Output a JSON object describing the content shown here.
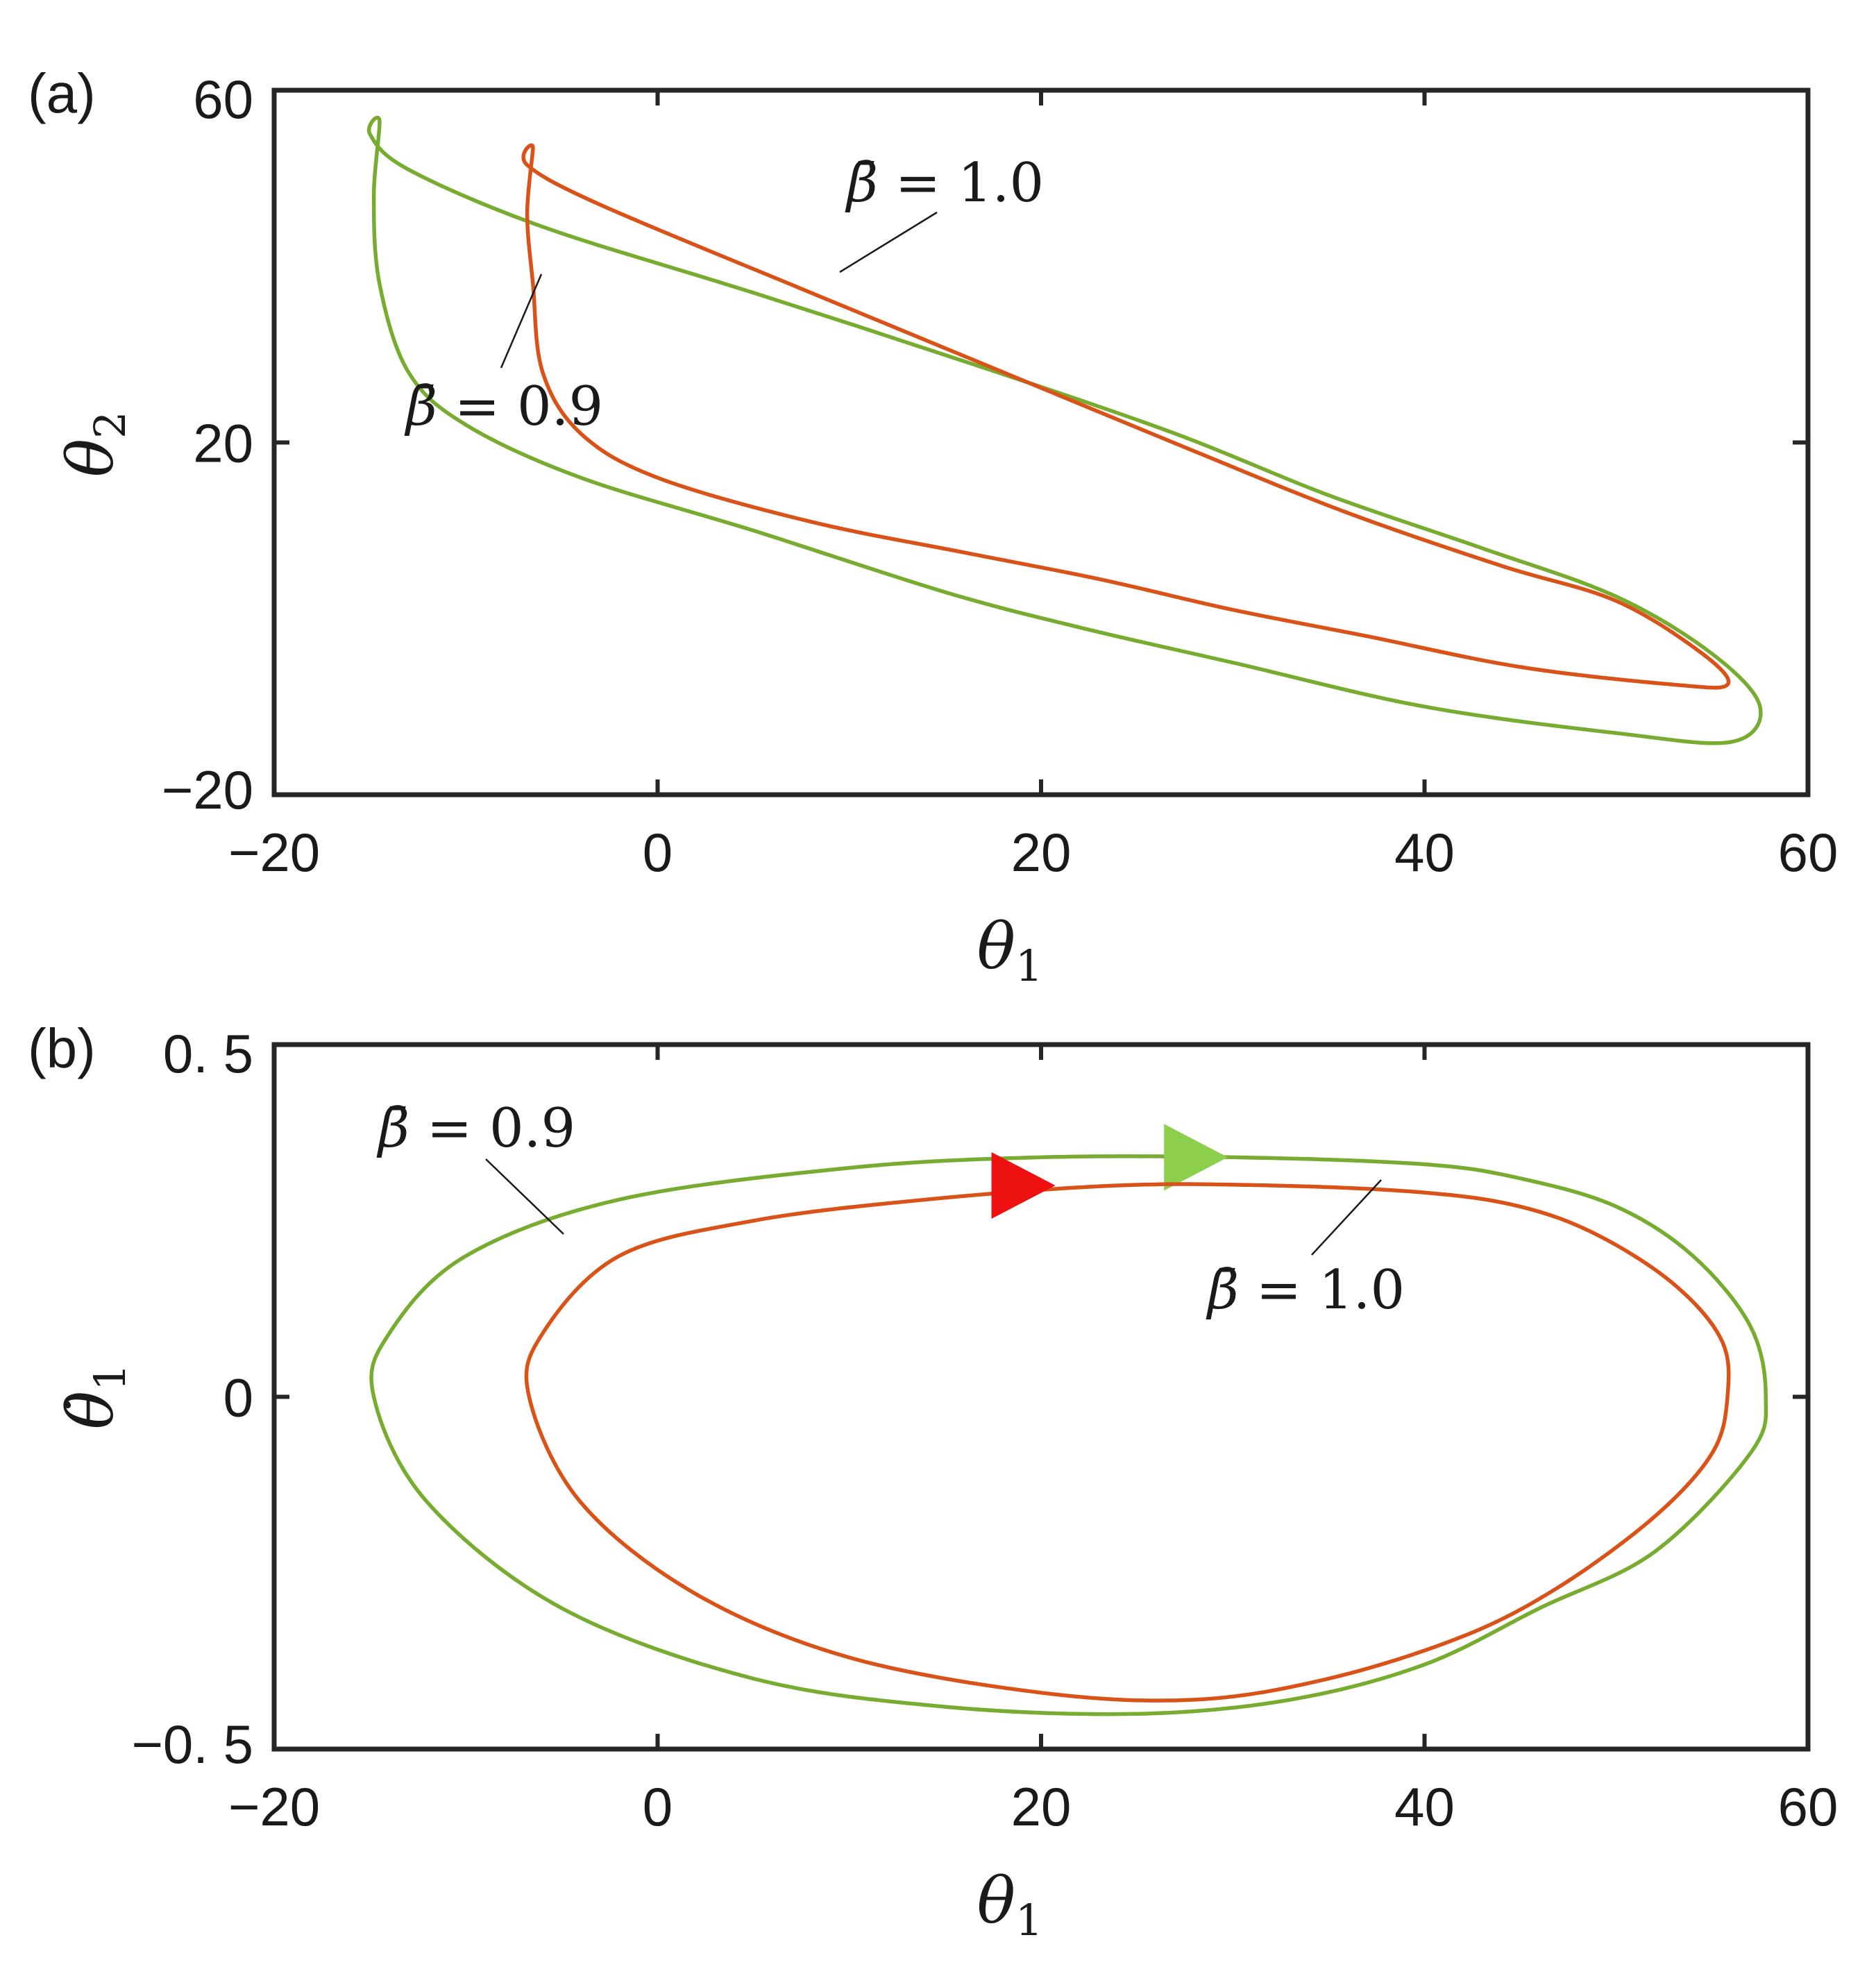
{
  "chart_data": [
    {
      "panel_label": "(a)",
      "type": "line",
      "xlabel": "θ",
      "xlabel_sub": "1",
      "ylabel": "θ",
      "ylabel_sub": "2",
      "xlim": [
        -20,
        60
      ],
      "ylim": [
        -20,
        60
      ],
      "xticks": [
        -20,
        0,
        20,
        40,
        60
      ],
      "yticks": [
        -20,
        20,
        60
      ],
      "xtick_labels": [
        "−20",
        "0",
        "20",
        "40",
        "60"
      ],
      "ytick_labels": [
        "−20",
        "20",
        "60"
      ],
      "grid": false,
      "series": [
        {
          "name": "β̄ = 0.9",
          "color": "#77ac30",
          "points": [
            [
              -14.5,
              56.5
            ],
            [
              -15,
              55
            ],
            [
              -13,
              51
            ],
            [
              -6,
              44.5
            ],
            [
              5,
              37
            ],
            [
              17,
              28.5
            ],
            [
              27,
              21
            ],
            [
              35,
              14
            ],
            [
              43,
              8
            ],
            [
              50,
              2.5
            ],
            [
              55,
              -4
            ],
            [
              57.5,
              -10
            ],
            [
              56,
              -14
            ],
            [
              50,
              -13
            ],
            [
              40,
              -10
            ],
            [
              30,
              -5
            ],
            [
              22,
              -1
            ],
            [
              15,
              3
            ],
            [
              5,
              10
            ],
            [
              -4,
              16
            ],
            [
              -10,
              22
            ],
            [
              -13,
              28
            ],
            [
              -14.5,
              38
            ],
            [
              -14.8,
              48
            ],
            [
              -14.5,
              56.5
            ]
          ]
        },
        {
          "name": "β̄ = 1.0",
          "color": "#d95319",
          "points": [
            [
              -6.5,
              53.5
            ],
            [
              -6.8,
              51.5
            ],
            [
              -3,
              47
            ],
            [
              8,
              37
            ],
            [
              18,
              28
            ],
            [
              28,
              19
            ],
            [
              36,
              12
            ],
            [
              44,
              6
            ],
            [
              50,
              2
            ],
            [
              54.5,
              -4
            ],
            [
              55.8,
              -7.5
            ],
            [
              53,
              -7.5
            ],
            [
              45,
              -5.5
            ],
            [
              37,
              -2
            ],
            [
              30,
              1
            ],
            [
              23,
              4.5
            ],
            [
              16,
              7.5
            ],
            [
              8,
              11
            ],
            [
              0,
              16
            ],
            [
              -4,
              21
            ],
            [
              -6,
              28
            ],
            [
              -6.5,
              38
            ],
            [
              -6.8,
              46
            ],
            [
              -6.5,
              53.5
            ]
          ]
        }
      ],
      "annotations": [
        {
          "text_sym": "β̄",
          "text_rest": "= 1.0"
        },
        {
          "text_sym": "β̄",
          "text_rest": "= 0.9"
        }
      ]
    },
    {
      "panel_label": "(b)",
      "type": "line",
      "xlabel": "θ",
      "xlabel_sub": "1",
      "ylabel": "θ̇",
      "ylabel_sub": "1",
      "xlim": [
        -20,
        60
      ],
      "ylim": [
        -0.5,
        0.5
      ],
      "xticks": [
        -20,
        0,
        20,
        40,
        60
      ],
      "yticks": [
        -0.5,
        0,
        0.5
      ],
      "xtick_labels": [
        "−20",
        "0",
        "20",
        "40",
        "60"
      ],
      "ytick_labels": [
        "−0. 5",
        "0",
        "0. 5"
      ],
      "grid": false,
      "series": [
        {
          "name": "β̄ = 0.9",
          "color": "#77ac30",
          "direction_marker_color": "#8ccf4d",
          "points": [
            [
              -14.8,
              0
            ],
            [
              -14,
              0.09
            ],
            [
              -10,
              0.2
            ],
            [
              -2,
              0.28
            ],
            [
              10,
              0.325
            ],
            [
              20,
              0.34
            ],
            [
              30,
              0.34
            ],
            [
              40,
              0.33
            ],
            [
              45,
              0.31
            ],
            [
              50,
              0.27
            ],
            [
              54,
              0.2
            ],
            [
              57,
              0.1
            ],
            [
              57.8,
              0
            ],
            [
              57,
              -0.08
            ],
            [
              52,
              -0.22
            ],
            [
              46,
              -0.3
            ],
            [
              40,
              -0.38
            ],
            [
              33,
              -0.43
            ],
            [
              25,
              -0.45
            ],
            [
              15,
              -0.44
            ],
            [
              5,
              -0.4
            ],
            [
              -5,
              -0.3
            ],
            [
              -12,
              -0.15
            ],
            [
              -14.8,
              0
            ]
          ]
        },
        {
          "name": "β̄ = 1.0",
          "color": "#d95319",
          "direction_marker_color": "#ee1111",
          "points": [
            [
              -6.7,
              0
            ],
            [
              -6,
              0.09
            ],
            [
              -2,
              0.2
            ],
            [
              5,
              0.25
            ],
            [
              14,
              0.28
            ],
            [
              24,
              0.3
            ],
            [
              32,
              0.3
            ],
            [
              40,
              0.29
            ],
            [
              45,
              0.27
            ],
            [
              49,
              0.23
            ],
            [
              53,
              0.16
            ],
            [
              55.5,
              0.08
            ],
            [
              55.8,
              0
            ],
            [
              55,
              -0.08
            ],
            [
              52,
              -0.17
            ],
            [
              47,
              -0.27
            ],
            [
              42,
              -0.34
            ],
            [
              35,
              -0.4
            ],
            [
              28,
              -0.43
            ],
            [
              20,
              -0.42
            ],
            [
              10,
              -0.37
            ],
            [
              2,
              -0.28
            ],
            [
              -4,
              -0.15
            ],
            [
              -6.7,
              0
            ]
          ]
        }
      ],
      "annotations": [
        {
          "text_sym": "β̄",
          "text_rest": "= 0.9"
        },
        {
          "text_sym": "β̄",
          "text_rest": "= 1.0"
        }
      ]
    }
  ]
}
